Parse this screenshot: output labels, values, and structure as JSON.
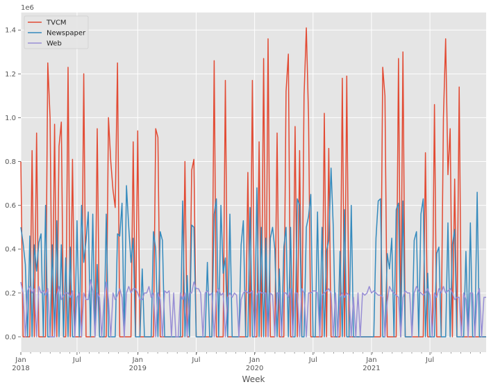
{
  "chart_data": {
    "type": "line",
    "title": "",
    "xlabel": "Week",
    "ylabel": "",
    "y_offset_label": "1e6",
    "y_units": "millions (x1e6)",
    "x_frequency": "weekly",
    "x_index_start": "Jan 2018",
    "xlim_weeks": [
      0,
      207
    ],
    "ylim": [
      -0.07,
      1.48
    ],
    "grid": true,
    "legend_position": "top-left",
    "y_ticks": [
      0.0,
      0.2,
      0.4,
      0.6,
      0.8,
      1.0,
      1.2,
      1.4
    ],
    "y_tick_labels": [
      "0.0",
      "0.2",
      "0.4",
      "0.6",
      "0.8",
      "1.0",
      "1.2",
      "1.4"
    ],
    "x_ticks": [
      {
        "week": 0,
        "label": "Jan",
        "sublabel": "2018"
      },
      {
        "week": 25,
        "label": "Jul",
        "sublabel": ""
      },
      {
        "week": 52,
        "label": "Jan",
        "sublabel": "2019"
      },
      {
        "week": 78,
        "label": "Jul",
        "sublabel": ""
      },
      {
        "week": 104,
        "label": "Jan",
        "sublabel": "2020"
      },
      {
        "week": 130,
        "label": "Jul",
        "sublabel": ""
      },
      {
        "week": 156,
        "label": "Jan",
        "sublabel": "2021"
      },
      {
        "week": 182,
        "label": "Jul",
        "sublabel": ""
      }
    ],
    "series": [
      {
        "name": "TVCM",
        "color": "#E24A33",
        "values": [
          0.8,
          0,
          0,
          0,
          0,
          0.85,
          0,
          0.93,
          0,
          0,
          0,
          0,
          1.25,
          1.0,
          0,
          0.97,
          0,
          0.87,
          0.98,
          0,
          0,
          1.23,
          0,
          0.81,
          0,
          0,
          0,
          0,
          1.2,
          0,
          0,
          0,
          0,
          0,
          0.95,
          0,
          0,
          0,
          0,
          1.0,
          0.8,
          0.67,
          0.59,
          1.25,
          0,
          0,
          0,
          0,
          0,
          0,
          0.89,
          0,
          0.94,
          0,
          0,
          0,
          0,
          0,
          0,
          0,
          0.95,
          0.91,
          0,
          0,
          0,
          0,
          0,
          0,
          0,
          0,
          0,
          0,
          0,
          0.8,
          0,
          0,
          0.76,
          0.81,
          0,
          0,
          0,
          0,
          0,
          0,
          0,
          0,
          1.26,
          0,
          0,
          0,
          0,
          1.17,
          0,
          0,
          0,
          0,
          0,
          0,
          0,
          0,
          0,
          0.75,
          0,
          1.17,
          0,
          0,
          0.89,
          0,
          1.27,
          0,
          1.36,
          0,
          0,
          0,
          0.93,
          0,
          0,
          0,
          1.12,
          1.29,
          0,
          0,
          0.96,
          0,
          0.85,
          0,
          1.1,
          1.41,
          1.0,
          0,
          0,
          0,
          0,
          0,
          0,
          1.02,
          0,
          0.86,
          0,
          0,
          0,
          0,
          0,
          1.18,
          0,
          1.19,
          0,
          0,
          0,
          0,
          0,
          0,
          0,
          0,
          0,
          0,
          0,
          0,
          0,
          0,
          0,
          1.23,
          1.1,
          0,
          0,
          0,
          0,
          0,
          1.27,
          0,
          1.3,
          0,
          0,
          0,
          0,
          0,
          0,
          0,
          0,
          0,
          0.84,
          0,
          0,
          0,
          1.06,
          0,
          0,
          0,
          1.0,
          1.36,
          0.74,
          0.95,
          0,
          0.72,
          0,
          1.14,
          0,
          0,
          0,
          0,
          0,
          0,
          0,
          0,
          0,
          0,
          0,
          0
        ]
      },
      {
        "name": "Newspaper",
        "color": "#348ABD",
        "values": [
          0.5,
          0.43,
          0.33,
          0,
          0.46,
          0,
          0.42,
          0.3,
          0.43,
          0.47,
          0,
          0.6,
          0,
          0,
          0.42,
          0,
          0.53,
          0,
          0.42,
          0,
          0.36,
          0,
          0.41,
          0,
          0,
          0.53,
          0,
          0.6,
          0.34,
          0.44,
          0.57,
          0,
          0.56,
          0,
          0.33,
          0,
          0,
          0,
          0.56,
          0,
          0,
          0,
          0,
          0.47,
          0.46,
          0.61,
          0,
          0.69,
          0.5,
          0.34,
          0.45,
          0,
          0,
          0,
          0.31,
          0,
          0,
          0,
          0,
          0.48,
          0.4,
          0,
          0.48,
          0.44,
          0,
          0,
          0,
          0,
          0,
          0,
          0,
          0,
          0.62,
          0,
          0.28,
          0,
          0.51,
          0.5,
          0,
          0,
          0,
          0,
          0,
          0.34,
          0,
          0,
          0.56,
          0.63,
          0,
          0.6,
          0.29,
          0.36,
          0,
          0.56,
          0,
          0,
          0,
          0,
          0.42,
          0.53,
          0,
          0,
          0.59,
          0,
          0,
          0.68,
          0,
          0.5,
          0,
          0.45,
          0,
          0.45,
          0.5,
          0.4,
          0,
          0.31,
          0,
          0.41,
          0.5,
          0,
          0.5,
          0,
          0,
          0.63,
          0.6,
          0,
          0,
          0.5,
          0.55,
          0.65,
          0,
          0,
          0.57,
          0,
          0.5,
          0,
          0.39,
          0.44,
          0.77,
          0.5,
          0,
          0,
          0.39,
          0,
          0.58,
          0,
          0,
          0.6,
          0,
          0,
          0,
          0,
          0,
          0,
          0,
          0,
          0,
          0,
          0.45,
          0.62,
          0.63,
          0,
          0,
          0.38,
          0.31,
          0.45,
          0,
          0.58,
          0.61,
          0,
          0.62,
          0,
          0,
          0,
          0,
          0.44,
          0.48,
          0,
          0.56,
          0.63,
          0,
          0.29,
          0,
          0,
          0,
          0.38,
          0.41,
          0,
          0,
          0,
          0.52,
          0,
          0.42,
          0.49,
          0,
          0,
          0,
          0,
          0.39,
          0,
          0.52,
          0,
          0,
          0.66,
          0,
          0,
          0,
          0
        ]
      },
      {
        "name": "Web",
        "color": "#988ED5",
        "values": [
          0.25,
          0.2,
          0,
          0.21,
          0.23,
          0.2,
          0.22,
          0,
          0.23,
          0.2,
          0.21,
          0.19,
          0.22,
          0,
          0,
          0,
          0.19,
          0.23,
          0.17,
          0.19,
          0.2,
          0.2,
          0.18,
          0.21,
          0,
          0.18,
          0.2,
          0,
          0.2,
          0.17,
          0.17,
          0.26,
          0.21,
          0,
          0.2,
          0.18,
          0,
          0.17,
          0.25,
          0.17,
          0,
          0.2,
          0.17,
          0.19,
          0.22,
          0.18,
          0,
          0.2,
          0.23,
          0.2,
          0.22,
          0.22,
          0.2,
          0.17,
          0.17,
          0.2,
          0.2,
          0.23,
          0.18,
          0.2,
          0,
          0.2,
          0.17,
          0,
          0.21,
          0.2,
          0.21,
          0,
          0.2,
          0,
          0,
          0.2,
          0.17,
          0.2,
          0,
          0.2,
          0.2,
          0.25,
          0.22,
          0.22,
          0.2,
          0,
          0.2,
          0.21,
          0.19,
          0.2,
          0,
          0.2,
          0.22,
          0.19,
          0.2,
          0,
          0.18,
          0.2,
          0.18,
          0.2,
          0.19,
          0,
          0.17,
          0.2,
          0.21,
          0.2,
          0.2,
          0.21,
          0,
          0.19,
          0.21,
          0.2,
          0.2,
          0.2,
          0,
          0.2,
          0.19,
          0,
          0.2,
          0.2,
          0,
          0.2,
          0.2,
          0.18,
          0.22,
          0,
          0.2,
          0.2,
          0,
          0.22,
          0.2,
          0,
          0.2,
          0.2,
          0.21,
          0.21,
          0.2,
          0,
          0.19,
          0.2,
          0.21,
          0.22,
          0.2,
          0,
          0.2,
          0,
          0.18,
          0.2,
          0.18,
          0.2,
          0.19,
          0,
          0.18,
          0,
          0.2,
          0,
          0.2,
          0.19,
          0.2,
          0.23,
          0.2,
          0.21,
          0.2,
          0.19,
          0.19,
          0.18,
          0,
          0.16,
          0.23,
          0.21,
          0.2,
          0.19,
          0.18,
          0,
          0.18,
          0.21,
          0.2,
          0.2,
          0,
          0.2,
          0.23,
          0.21,
          0.2,
          0.19,
          0.2,
          0.22,
          0.19,
          0,
          0.2,
          0.18,
          0.22,
          0.2,
          0.23,
          0.2,
          0.21,
          0.22,
          0.2,
          0.17,
          0.18,
          0.18,
          0,
          0.2,
          0.17,
          0,
          0.2,
          0.2,
          0,
          0.19,
          0.22,
          0,
          0.18,
          0.18
        ]
      }
    ]
  }
}
